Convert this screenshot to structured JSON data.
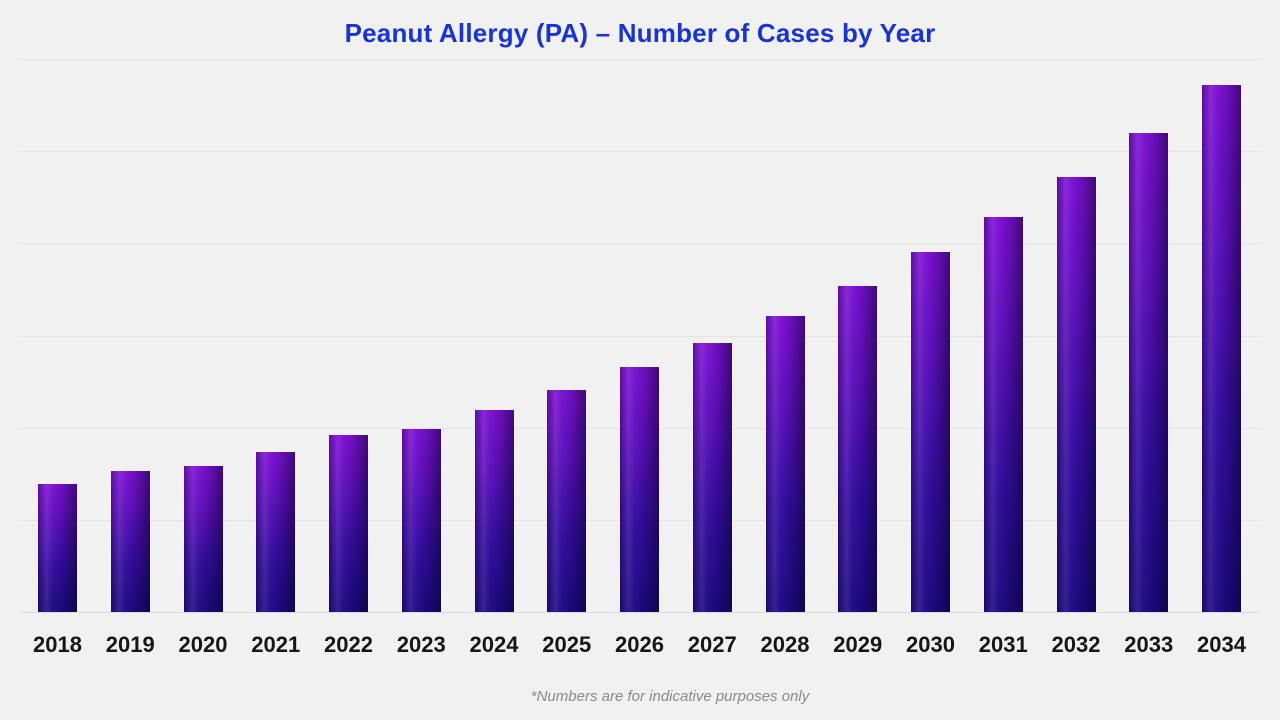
{
  "chart_data": {
    "type": "bar",
    "title": "Peanut Allergy (PA) – Number of Cases by Year",
    "title_color": "#1733d9",
    "categories": [
      "2018",
      "2019",
      "2020",
      "2021",
      "2022",
      "2023",
      "2024",
      "2025",
      "2026",
      "2027",
      "2028",
      "2029",
      "2030",
      "2031",
      "2032",
      "2033",
      "2034"
    ],
    "values": [
      1.39,
      1.53,
      1.58,
      1.74,
      1.92,
      1.99,
      2.19,
      2.41,
      2.66,
      2.92,
      3.21,
      3.54,
      3.91,
      4.29,
      4.72,
      5.2,
      5.72
    ],
    "value_note": "y-axis has no tick labels; values estimated in gridline units read from the plot",
    "xlabel": "",
    "ylabel": "",
    "ylim": [
      0,
      6
    ],
    "grid": "6 horizontal unlabeled gridlines plus baseline, light gray",
    "legend": "none",
    "bar_color_top": "#7d11d4",
    "bar_color_bottom": "#1c0a82",
    "bar_shading": "diagonal purple-to-navy gradient with darker right edge",
    "background_color": "#f1f1f2",
    "footnote": "*Numbers are for indicative purposes only"
  }
}
